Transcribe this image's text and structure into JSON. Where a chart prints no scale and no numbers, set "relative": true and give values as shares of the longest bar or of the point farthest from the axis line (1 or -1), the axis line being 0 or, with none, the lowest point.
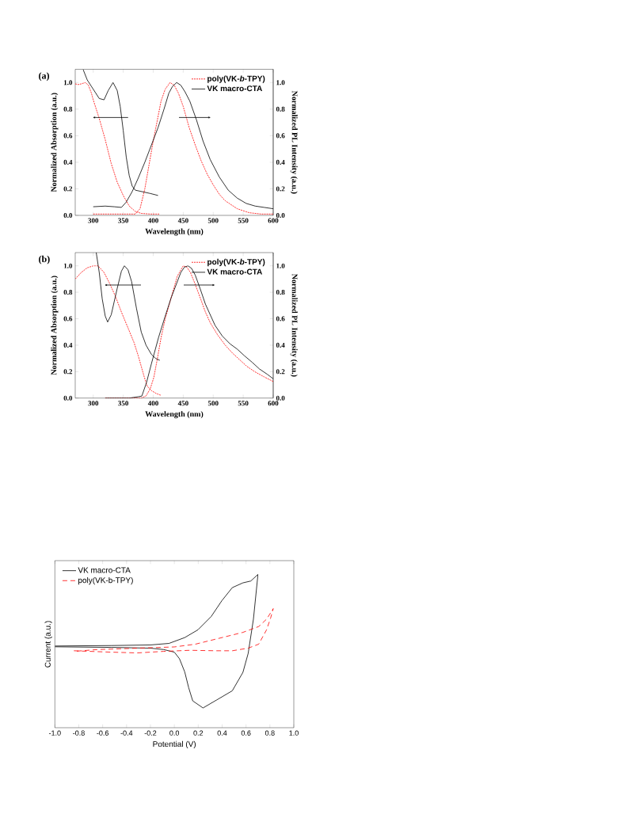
{
  "chart_data": [
    {
      "type": "line",
      "title": "(a)",
      "xlabel": "Wavelength (nm)",
      "ylabel": "Normalized Absorption (a.u.)",
      "y2label": "Normalized PL Intensity (a.u.)",
      "xlim": [
        270,
        600
      ],
      "xticks": [
        300,
        350,
        400,
        450,
        500,
        550,
        600
      ],
      "ylim": [
        0,
        1.1
      ],
      "yticks": [
        {
          "value": 0,
          "label": "0.0"
        },
        {
          "value": 0.2,
          "label": "0.2"
        },
        {
          "value": 0.4,
          "label": "0.4"
        },
        {
          "value": 0.6,
          "label": "0.6"
        },
        {
          "value": 0.8,
          "label": "0.8"
        },
        {
          "value": 1,
          "label": "1.0"
        }
      ],
      "y2lim": [
        0,
        1.1
      ],
      "y2ticks": [
        {
          "value": 0,
          "label": "0.0"
        },
        {
          "value": 0.2,
          "label": "0.2"
        },
        {
          "value": 0.4,
          "label": "0.4"
        },
        {
          "value": 0.6,
          "label": "0.6"
        },
        {
          "value": 0.8,
          "label": "0.8"
        },
        {
          "value": 1,
          "label": "1.0"
        }
      ],
      "legend": "top right",
      "series": [
        {
          "color": "#ff0000",
          "line_style": "dashed",
          "x": [
            270,
            275,
            280,
            287,
            292,
            297,
            300,
            305,
            310,
            320,
            330,
            340,
            350,
            360,
            370,
            380,
            395,
            410
          ],
          "values": [
            0.99,
            0.985,
            0.99,
            1.0,
            0.98,
            0.92,
            0.87,
            0.8,
            0.73,
            0.57,
            0.39,
            0.25,
            0.15,
            0.07,
            0.03,
            0.015,
            0.01,
            0.01
          ]
        },
        {
          "color": "#000000",
          "line_style": "solid",
          "x": [
            283,
            290,
            300,
            310,
            318,
            325,
            333,
            340,
            345,
            350,
            355,
            360,
            365,
            370,
            380,
            395,
            408
          ],
          "values": [
            1.1,
            1.02,
            0.95,
            0.88,
            0.87,
            0.94,
            1.0,
            0.94,
            0.82,
            0.64,
            0.44,
            0.3,
            0.22,
            0.19,
            0.18,
            0.165,
            0.15
          ]
        },
        {
          "name": "poly(VK-*b*-TPY)",
          "color": "#ff0000",
          "line_style": "dashed",
          "axis": "y2",
          "x": [
            300,
            360,
            370,
            378,
            386,
            393,
            400,
            407,
            413,
            420,
            428,
            435,
            442,
            450,
            460,
            470,
            480,
            490,
            500,
            510,
            520,
            540,
            560,
            580,
            600
          ],
          "values": [
            0.01,
            0.01,
            0.01,
            0.05,
            0.2,
            0.38,
            0.56,
            0.72,
            0.86,
            0.95,
            1.0,
            0.98,
            0.92,
            0.82,
            0.66,
            0.53,
            0.41,
            0.31,
            0.23,
            0.16,
            0.11,
            0.05,
            0.02,
            0.01,
            0.01
          ]
        },
        {
          "name": "VK macro-CTA",
          "color": "#000000",
          "line_style": "solid",
          "axis": "y2",
          "x": [
            300,
            320,
            335,
            347,
            355,
            365,
            375,
            386,
            397,
            408,
            418,
            426,
            432,
            439,
            446,
            453,
            461,
            472,
            483,
            495,
            510,
            525,
            540,
            555,
            570,
            585,
            600
          ],
          "values": [
            0.065,
            0.07,
            0.065,
            0.06,
            0.1,
            0.18,
            0.28,
            0.4,
            0.53,
            0.66,
            0.8,
            0.92,
            0.97,
            1.0,
            0.98,
            0.93,
            0.86,
            0.72,
            0.56,
            0.42,
            0.29,
            0.19,
            0.13,
            0.09,
            0.07,
            0.06,
            0.05
          ]
        }
      ]
    },
    {
      "type": "line",
      "title": "(b)",
      "xlabel": "Wavelength (nm)",
      "ylabel": "Normalized Absorption (a.u.)",
      "y2label": "Normalized PL Intensity (a.u.)",
      "xlim": [
        270,
        600
      ],
      "xticks": [
        300,
        350,
        400,
        450,
        500,
        550,
        600
      ],
      "ylim": [
        0,
        1.1
      ],
      "yticks": [
        {
          "value": 0,
          "label": "0.0"
        },
        {
          "value": 0.2,
          "label": "0.2"
        },
        {
          "value": 0.4,
          "label": "0.4"
        },
        {
          "value": 0.6,
          "label": "0.6"
        },
        {
          "value": 0.8,
          "label": "0.8"
        },
        {
          "value": 1,
          "label": "1.0"
        }
      ],
      "y2lim": [
        0,
        1.1
      ],
      "y2ticks": [
        {
          "value": 0,
          "label": "0.0"
        },
        {
          "value": 0.2,
          "label": "0.2"
        },
        {
          "value": 0.4,
          "label": "0.4"
        },
        {
          "value": 0.6,
          "label": "0.6"
        },
        {
          "value": 0.8,
          "label": "0.8"
        },
        {
          "value": 1,
          "label": "1.0"
        }
      ],
      "legend": "top right",
      "series": [
        {
          "color": "#ff0000",
          "line_style": "dashed",
          "x": [
            270,
            280,
            290,
            300,
            308,
            318,
            327,
            337,
            347,
            358,
            368,
            375,
            380,
            385,
            390,
            397,
            405,
            413
          ],
          "values": [
            0.9,
            0.95,
            0.985,
            1.0,
            1.0,
            0.95,
            0.87,
            0.77,
            0.65,
            0.53,
            0.42,
            0.32,
            0.24,
            0.16,
            0.09,
            0.056,
            0.035,
            0.02
          ]
        },
        {
          "color": "#000000",
          "line_style": "solid",
          "x": [
            305,
            310,
            315,
            320,
            324,
            330,
            340,
            347,
            352,
            358,
            364,
            372,
            380,
            388,
            397,
            404,
            411
          ],
          "values": [
            1.1,
            0.95,
            0.75,
            0.62,
            0.575,
            0.63,
            0.83,
            0.96,
            1.0,
            0.97,
            0.88,
            0.68,
            0.5,
            0.4,
            0.33,
            0.3,
            0.285
          ]
        },
        {
          "name": "poly(VK-*b*-TPY)",
          "color": "#ff0000",
          "line_style": "dashed",
          "axis": "y2",
          "x": [
            320,
            380,
            388,
            395,
            401,
            407,
            413,
            420,
            430,
            440,
            450,
            456,
            462,
            470,
            479,
            487,
            495,
            507,
            520,
            532,
            544,
            556,
            569,
            585,
            600
          ],
          "values": [
            0.0,
            0.0,
            0.016,
            0.07,
            0.156,
            0.3,
            0.455,
            0.6,
            0.76,
            0.92,
            1.0,
            0.99,
            0.95,
            0.86,
            0.75,
            0.65,
            0.57,
            0.48,
            0.4,
            0.34,
            0.29,
            0.24,
            0.2,
            0.16,
            0.125
          ]
        },
        {
          "name": "VK macro-CTA",
          "color": "#000000",
          "line_style": "solid",
          "axis": "y2",
          "x": [
            320,
            360,
            375,
            381,
            389,
            397,
            409,
            420,
            430,
            446,
            452,
            458,
            464,
            470,
            478,
            487,
            495,
            503,
            515,
            528,
            540,
            552,
            565,
            577,
            590,
            600
          ],
          "values": [
            0.0,
            0.0,
            0.01,
            0.015,
            0.12,
            0.26,
            0.46,
            0.62,
            0.76,
            0.95,
            0.99,
            1.0,
            0.98,
            0.93,
            0.83,
            0.71,
            0.63,
            0.55,
            0.47,
            0.41,
            0.37,
            0.32,
            0.27,
            0.22,
            0.18,
            0.146
          ]
        }
      ]
    },
    {
      "type": "line",
      "xlabel": "Potential (V)",
      "ylabel": "Current (a.u.)",
      "relative": true,
      "xlim": [
        -1,
        1
      ],
      "xticks": [
        {
          "value": -1,
          "label": "-1.0"
        },
        {
          "value": -0.8,
          "label": "-0.8"
        },
        {
          "value": -0.6,
          "label": "-0.6"
        },
        {
          "value": -0.4,
          "label": "-0.4"
        },
        {
          "value": -0.2,
          "label": "-0.2"
        },
        {
          "value": 0,
          "label": "0.0"
        },
        {
          "value": 0.2,
          "label": "0.2"
        },
        {
          "value": 0.4,
          "label": "0.4"
        },
        {
          "value": 0.6,
          "label": "0.6"
        },
        {
          "value": 0.8,
          "label": "0.8"
        },
        {
          "value": 1,
          "label": "1.0"
        }
      ],
      "legend": "top left",
      "series": [
        {
          "name": "VK macro-CTA",
          "color": "#000000",
          "line_style": "solid",
          "x": [
            -1.0,
            -0.53,
            -0.2,
            -0.045,
            0.087,
            0.198,
            0.308,
            0.397,
            0.485,
            0.574,
            0.64,
            0.7,
            0.662,
            0.618,
            0.574,
            0.485,
            0.352,
            0.24,
            0.154,
            0.12,
            0.087,
            0.043,
            0.0,
            -0.09,
            -0.2,
            -0.53,
            -1.0
          ],
          "values": [
            0.533,
            0.536,
            0.54,
            0.55,
            0.588,
            0.639,
            0.725,
            0.828,
            0.914,
            0.945,
            0.957,
            1.0,
            0.708,
            0.485,
            0.361,
            0.241,
            0.18,
            0.129,
            0.175,
            0.261,
            0.364,
            0.45,
            0.493,
            0.51,
            0.519,
            0.524,
            0.528
          ]
        },
        {
          "name": "poly(VK-b-TPY)",
          "color": "#ff0000",
          "line_style": "dashed",
          "x": [
            -0.841,
            -0.531,
            -0.31,
            -0.09,
            0.131,
            0.352,
            0.485,
            0.618,
            0.706,
            0.772,
            0.806,
            0.828,
            0.772,
            0.706,
            0.574,
            0.352,
            0.176,
            0.0,
            -0.31,
            -0.642,
            -0.841
          ],
          "values": [
            0.502,
            0.493,
            0.488,
            0.498,
            0.505,
            0.502,
            0.502,
            0.519,
            0.545,
            0.639,
            0.716,
            0.777,
            0.708,
            0.66,
            0.622,
            0.579,
            0.545,
            0.527,
            0.519,
            0.51,
            0.498
          ]
        }
      ]
    }
  ]
}
